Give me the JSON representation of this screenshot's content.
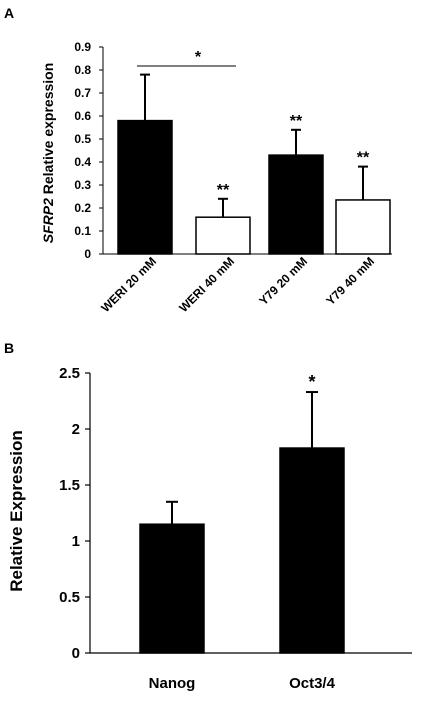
{
  "chart_data": [
    {
      "panel_label": "A",
      "type": "bar",
      "ylabel_italic": "SFRP2",
      "ylabel": " Relative expression",
      "ylim": [
        0,
        0.9
      ],
      "yticks": [
        "0",
        "0.1",
        "0.2",
        "0.3",
        "0.4",
        "0.5",
        "0.6",
        "0.7",
        "0.8",
        "0.9"
      ],
      "categories": [
        "WERI 20 mM",
        "WERI 40 mM",
        "Y79 20 mM",
        "Y79 40 mM"
      ],
      "values": [
        0.58,
        0.16,
        0.43,
        0.235
      ],
      "errors": [
        0.2,
        0.08,
        0.11,
        0.145
      ],
      "bar_colors": [
        "#000000",
        "#ffffff",
        "#000000",
        "#ffffff"
      ],
      "annotations": [
        "",
        "**",
        "**",
        "**"
      ],
      "bracket": {
        "from": "WERI 20 mM",
        "to": "WERI 40 mM",
        "label": "*"
      }
    },
    {
      "panel_label": "B",
      "type": "bar",
      "ylabel": "Relative Expression",
      "ylim": [
        0,
        2.5
      ],
      "yticks": [
        "0",
        "0.5",
        "1",
        "1.5",
        "2",
        "2.5"
      ],
      "categories": [
        "Nanog",
        "Oct3/4"
      ],
      "values": [
        1.15,
        1.83
      ],
      "errors": [
        0.2,
        0.5
      ],
      "bar_colors": [
        "#000000",
        "#000000"
      ],
      "annotations": [
        "",
        "*"
      ]
    }
  ]
}
